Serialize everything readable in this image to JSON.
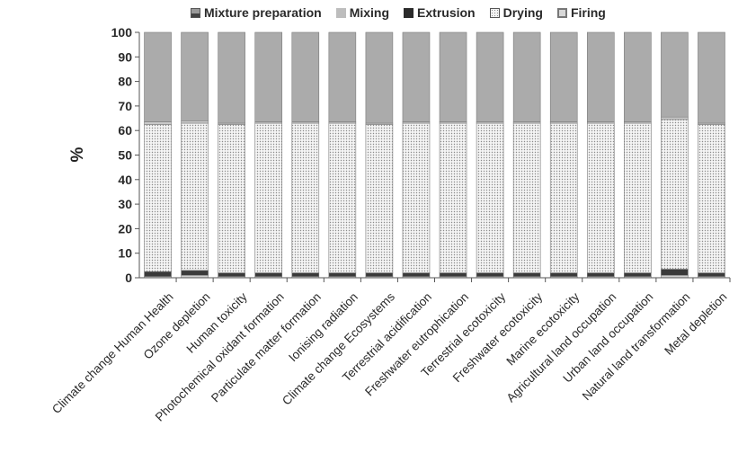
{
  "chart_data": {
    "type": "bar",
    "stacked": true,
    "title": "",
    "xlabel": "",
    "ylabel": "%",
    "ylim": [
      0,
      100
    ],
    "yticks": [
      0,
      10,
      20,
      30,
      40,
      50,
      60,
      70,
      80,
      90,
      100
    ],
    "legend_position": "top",
    "categories": [
      "Climate change Human Health",
      "Ozone depletion",
      "Human toxicity",
      "Photochemical oxidant formation",
      "Particulate matter formation",
      "Ionising radiation",
      "Climate change Ecosystems",
      "Terrestrial acidification",
      "Freshwater eutrophication",
      "Terrestrial ecotoxicity",
      "Freshwater ecotoxicity",
      "Marine ecotoxicity",
      "Agricultural land occupation",
      "Urban land occupation",
      "Natural land transformation",
      "Metal depletion"
    ],
    "series": [
      {
        "name": "Firing",
        "values": [
          0.5,
          1.0,
          0.5,
          0.5,
          0.5,
          0.5,
          0.5,
          0.5,
          0.5,
          0.5,
          0.5,
          0.5,
          0.5,
          0.5,
          1.0,
          0.5
        ],
        "color": "#d8d8d8"
      },
      {
        "name": "Drying",
        "values": [
          2.0,
          2.0,
          1.5,
          1.5,
          1.5,
          1.5,
          1.5,
          1.5,
          1.5,
          1.5,
          1.5,
          1.5,
          1.5,
          1.5,
          2.5,
          1.5
        ],
        "color": "#f2f2f2"
      },
      {
        "name": "Extrusion",
        "values": [
          60.0,
          60.0,
          60.5,
          61.0,
          61.0,
          61.0,
          60.5,
          61.0,
          61.0,
          61.0,
          61.0,
          61.0,
          61.0,
          61.0,
          61.0,
          60.5
        ],
        "color": "#2b2b2b"
      },
      {
        "name": "Mixing",
        "values": [
          1.0,
          1.0,
          0.5,
          0.5,
          0.5,
          0.5,
          0.5,
          0.5,
          0.5,
          0.5,
          0.5,
          0.5,
          0.5,
          0.5,
          1.0,
          0.5
        ],
        "color": "#bdbdbd"
      },
      {
        "name": "Mixture preparation",
        "values": [
          36.5,
          36.0,
          37.0,
          36.5,
          36.5,
          36.5,
          37.0,
          36.5,
          36.5,
          36.5,
          36.5,
          36.5,
          36.5,
          36.5,
          34.5,
          37.0
        ],
        "color": "#a8a8a8"
      }
    ],
    "legend": [
      "Mixture preparation",
      "Mixing",
      "Extrusion",
      "Drying",
      "Firing"
    ]
  }
}
